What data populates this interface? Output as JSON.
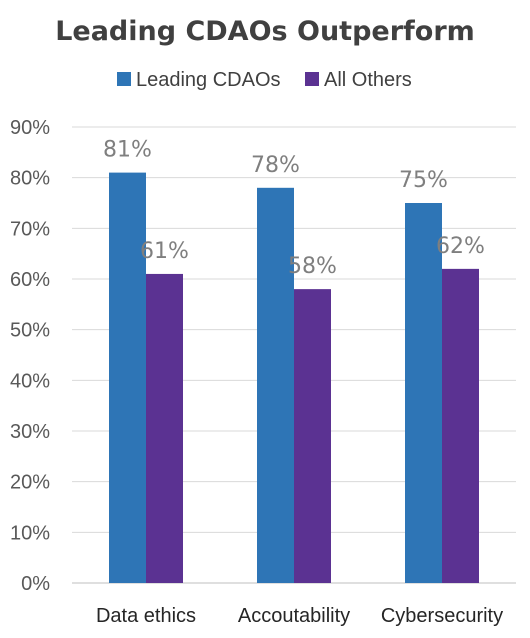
{
  "chart_data": {
    "type": "bar",
    "title": "Leading CDAOs Outperform",
    "categories": [
      "Data ethics",
      "Accoutability",
      "Cybersecurity"
    ],
    "series": [
      {
        "name": "Leading CDAOs",
        "values": [
          81,
          78,
          75
        ],
        "labels": [
          "81%",
          "78%",
          "75%"
        ],
        "color": "#2e75b6"
      },
      {
        "name": "All Others",
        "values": [
          61,
          58,
          62
        ],
        "labels": [
          "61%",
          "58%",
          "62%"
        ],
        "color": "#5b3292"
      }
    ],
    "ylim": [
      0,
      90
    ],
    "yticks": [
      "0%",
      "10%",
      "20%",
      "30%",
      "40%",
      "50%",
      "60%",
      "70%",
      "80%",
      "90%"
    ],
    "grid": true,
    "legend_position": "top-center"
  }
}
